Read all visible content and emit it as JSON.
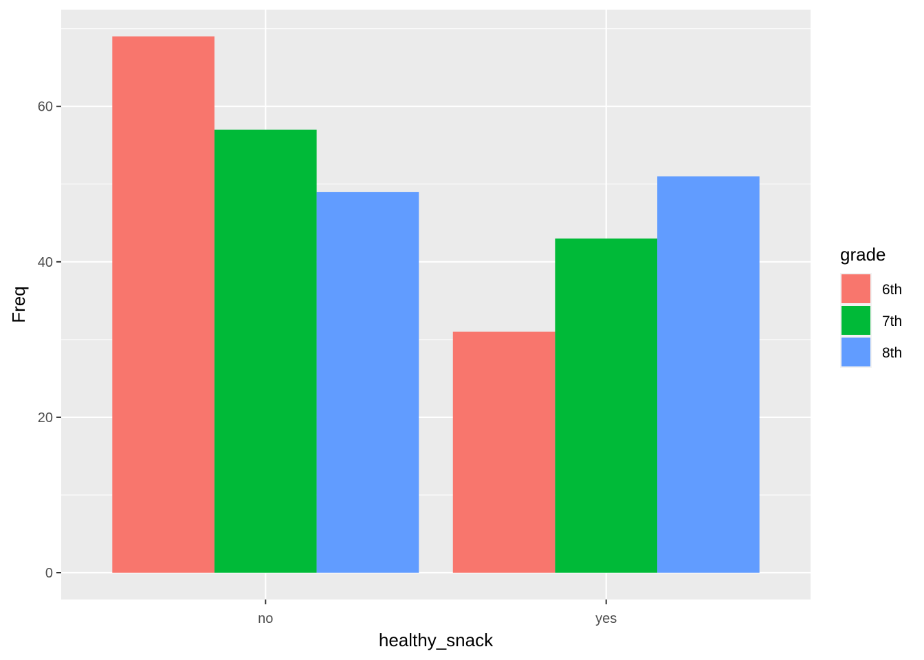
{
  "chart_data": {
    "type": "bar",
    "xlabel": "healthy_snack",
    "ylabel": "Freq",
    "categories": [
      "no",
      "yes"
    ],
    "series": [
      {
        "name": "6th",
        "values": [
          69,
          31
        ],
        "color": "#F8766D"
      },
      {
        "name": "7th",
        "values": [
          57,
          43
        ],
        "color": "#00BA38"
      },
      {
        "name": "8th",
        "values": [
          49,
          51
        ],
        "color": "#619CFF"
      }
    ],
    "ylim": [
      -3.45,
      72.45
    ],
    "yticks": [
      0,
      20,
      40,
      60
    ],
    "grid": true,
    "legend": {
      "title": "grade",
      "position": "right"
    },
    "panel_background": "#EBEBEB",
    "gridline_color": "#FFFFFF"
  }
}
